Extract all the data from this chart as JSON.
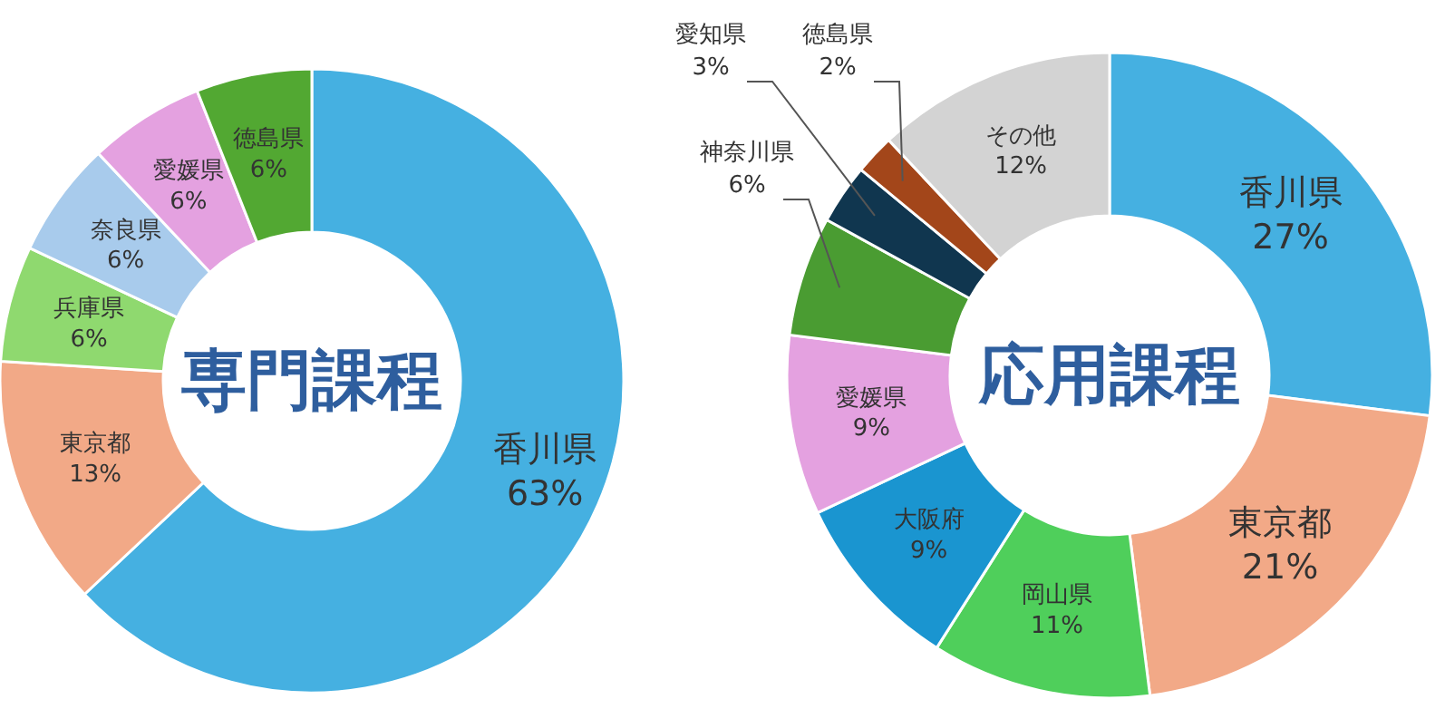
{
  "chart_data": [
    {
      "type": "donut",
      "title": "専門課程",
      "categories": [
        "香川県",
        "東京都",
        "兵庫県",
        "奈良県",
        "愛媛県",
        "徳島県"
      ],
      "values": [
        63,
        13,
        6,
        6,
        6,
        6
      ],
      "colors": [
        "#45b0e1",
        "#f2a987",
        "#8fd96f",
        "#a8cbec",
        "#e4a1e0",
        "#52a832"
      ],
      "value_labels": [
        "63%",
        "13%",
        "6%",
        "6%",
        "6%",
        "6%"
      ]
    },
    {
      "type": "donut",
      "title": "応用課程",
      "categories": [
        "香川県",
        "東京都",
        "岡山県",
        "大阪府",
        "愛媛県",
        "神奈川県",
        "愛知県",
        "徳島県",
        "その他"
      ],
      "values": [
        27,
        21,
        11,
        9,
        9,
        6,
        3,
        2,
        12
      ],
      "colors": [
        "#45b0e1",
        "#f2a987",
        "#4fcf5b",
        "#1a95d0",
        "#e4a1e0",
        "#4a9c32",
        "#10364f",
        "#a3461a",
        "#d3d3d3"
      ],
      "value_labels": [
        "27%",
        "21%",
        "11%",
        "9%",
        "9%",
        "6%",
        "3%",
        "2%",
        "12%"
      ]
    }
  ]
}
